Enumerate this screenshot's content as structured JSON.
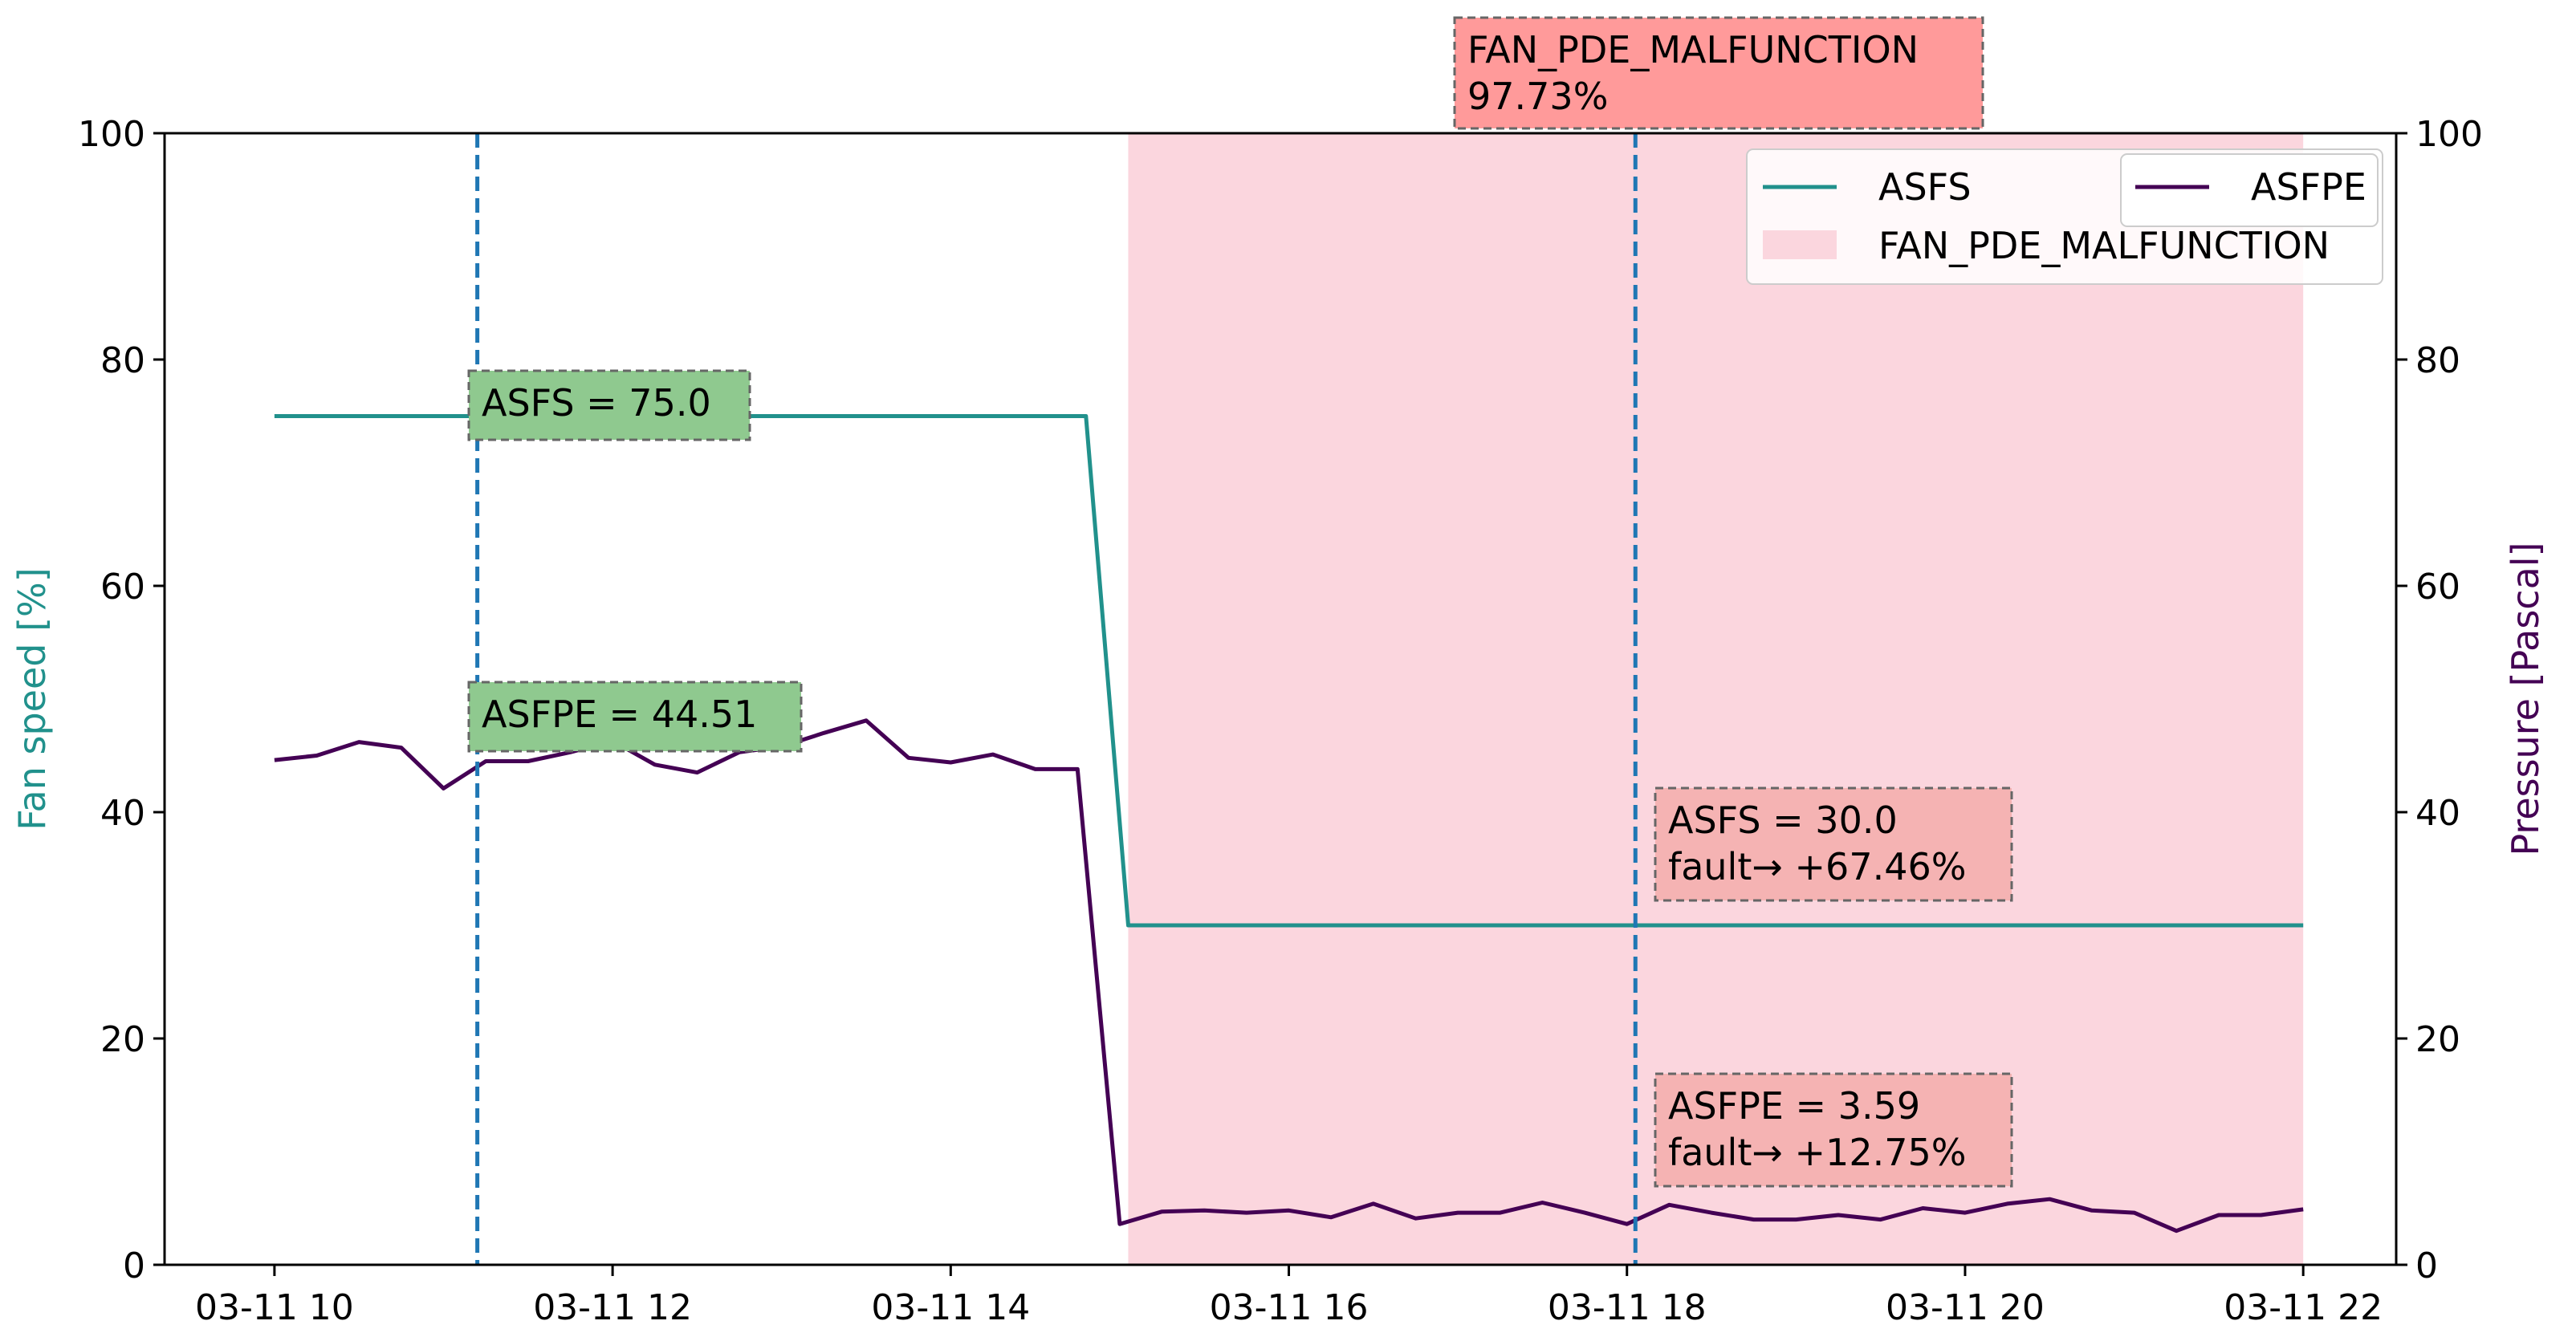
{
  "chart_data": {
    "type": "line",
    "x_axis": {
      "tick_labels": [
        "03-11 10",
        "03-11 12",
        "03-11 14",
        "03-11 16",
        "03-11 18",
        "03-11 20",
        "03-11 22"
      ],
      "tick_hours": [
        10,
        12,
        14,
        16,
        18,
        20,
        22
      ],
      "range_hours": [
        9.35,
        22.55
      ]
    },
    "y_left": {
      "label": "Fan speed [%]",
      "color": "#21918c",
      "ylim": [
        0,
        100
      ],
      "ticks": [
        "0",
        "20",
        "40",
        "60",
        "80",
        "100"
      ]
    },
    "y_right": {
      "label": "Pressure [Pascal]",
      "color": "#440154",
      "ylim": [
        0,
        100
      ],
      "ticks": [
        "0",
        "20",
        "40",
        "60",
        "80",
        "100"
      ]
    },
    "series": [
      {
        "name": "ASFS",
        "axis": "left",
        "color": "#21918c",
        "x_hours": [
          10,
          14.8,
          15.05,
          22
        ],
        "values": [
          75,
          75,
          30,
          30
        ]
      },
      {
        "name": "ASFPE",
        "axis": "right",
        "color": "#440154",
        "x_hours": [
          10,
          10.25,
          10.5,
          10.75,
          11,
          11.25,
          11.5,
          11.75,
          12,
          12.25,
          12.5,
          12.75,
          13,
          13.25,
          13.5,
          13.75,
          14,
          14.25,
          14.5,
          14.75,
          15,
          15.25,
          15.5,
          15.75,
          16,
          16.25,
          16.5,
          16.75,
          17,
          17.25,
          17.5,
          17.75,
          18,
          18.25,
          18.5,
          18.75,
          19,
          19.25,
          19.5,
          19.75,
          20,
          20.25,
          20.5,
          20.75,
          21,
          21.25,
          21.5,
          21.75,
          22
        ],
        "values": [
          44.6,
          45.0,
          46.2,
          45.7,
          42.1,
          44.5,
          44.5,
          45.3,
          46.3,
          44.2,
          43.5,
          45.3,
          45.8,
          47.0,
          48.1,
          44.8,
          44.4,
          45.1,
          43.8,
          43.8,
          3.6,
          4.7,
          4.8,
          4.6,
          4.8,
          4.2,
          5.4,
          4.1,
          4.6,
          4.6,
          5.5,
          4.6,
          3.6,
          5.3,
          4.6,
          4.0,
          4.0,
          4.4,
          4.0,
          5.0,
          4.6,
          5.4,
          5.8,
          4.8,
          4.6,
          3.0,
          4.4,
          4.4,
          4.9
        ]
      }
    ],
    "fault_region": {
      "name": "FAN_PDE_MALFUNCTION",
      "x_hours": [
        15.05,
        22
      ],
      "color": "#fbd6de"
    },
    "vlines": [
      {
        "x_hours": 11.2,
        "color": "#1f77b4"
      },
      {
        "x_hours": 18.05,
        "color": "#1f77b4"
      }
    ],
    "legend": {
      "placement": "top-right",
      "entries": [
        "ASFS",
        "FAN_PDE_MALFUNCTION",
        "ASFPE"
      ]
    },
    "annotations": [
      {
        "id": "fault-title",
        "lines": [
          "FAN_PDE_MALFUNCTION",
          "97.73%"
        ],
        "color": "#ff9a9a"
      },
      {
        "id": "asfs-normal",
        "lines": [
          "ASFS = 75.0"
        ],
        "color": "#8fc98f",
        "x_hours": 11.2,
        "value": 75.0
      },
      {
        "id": "asfpe-normal",
        "lines": [
          "ASFPE = 44.51"
        ],
        "color": "#8fc98f",
        "x_hours": 11.2,
        "value": 44.51
      },
      {
        "id": "asfs-fault",
        "lines": [
          "ASFS = 30.0",
          "fault→ +67.46%"
        ],
        "color": "#f5b3b3",
        "x_hours": 18.05,
        "value": 30.0
      },
      {
        "id": "asfpe-fault",
        "lines": [
          "ASFPE = 3.59",
          "fault→ +12.75%"
        ],
        "color": "#f5b3b3",
        "x_hours": 18.05,
        "value": 3.59
      }
    ]
  }
}
